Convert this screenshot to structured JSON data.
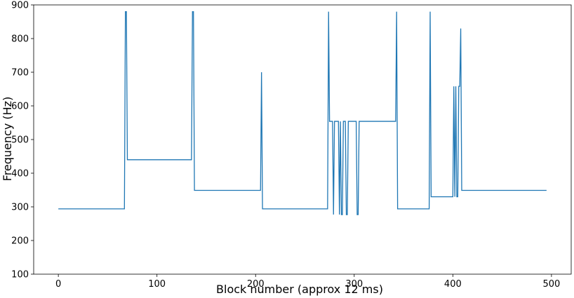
{
  "chart_data": {
    "type": "line",
    "title": "",
    "xlabel": "Block number (approx 12 ms)",
    "ylabel": "Frequency (Hz)",
    "xlim": [
      -25,
      520
    ],
    "ylim": [
      100,
      900
    ],
    "xticks": [
      0,
      100,
      200,
      300,
      400,
      500
    ],
    "yticks": [
      100,
      200,
      300,
      400,
      500,
      600,
      700,
      800,
      900
    ],
    "grid": false,
    "legend": "none",
    "series": [
      {
        "color": "#1f77b4",
        "x": [
          0,
          67,
          68,
          69,
          70,
          135,
          136,
          137,
          138,
          205,
          206,
          207,
          273,
          274,
          275,
          278,
          279,
          280,
          282,
          284,
          285,
          286,
          287,
          288,
          289,
          291,
          292,
          293,
          294,
          296,
          297,
          302,
          303,
          304,
          305,
          307,
          308,
          342,
          343,
          344,
          376,
          377,
          378,
          400,
          401,
          402,
          403,
          404,
          405,
          406,
          407,
          408,
          409,
          410,
          411,
          412,
          413,
          495
        ],
        "y": [
          294,
          294,
          880,
          880,
          440,
          440,
          880,
          880,
          349,
          349,
          700,
          294,
          294,
          880,
          554,
          554,
          277,
          554,
          554,
          554,
          277,
          554,
          277,
          277,
          554,
          554,
          277,
          277,
          554,
          554,
          554,
          554,
          277,
          277,
          554,
          554,
          554,
          554,
          880,
          294,
          294,
          880,
          330,
          330,
          658,
          330,
          658,
          330,
          330,
          658,
          658,
          830,
          349,
          349,
          349,
          349,
          349,
          349
        ]
      }
    ]
  }
}
